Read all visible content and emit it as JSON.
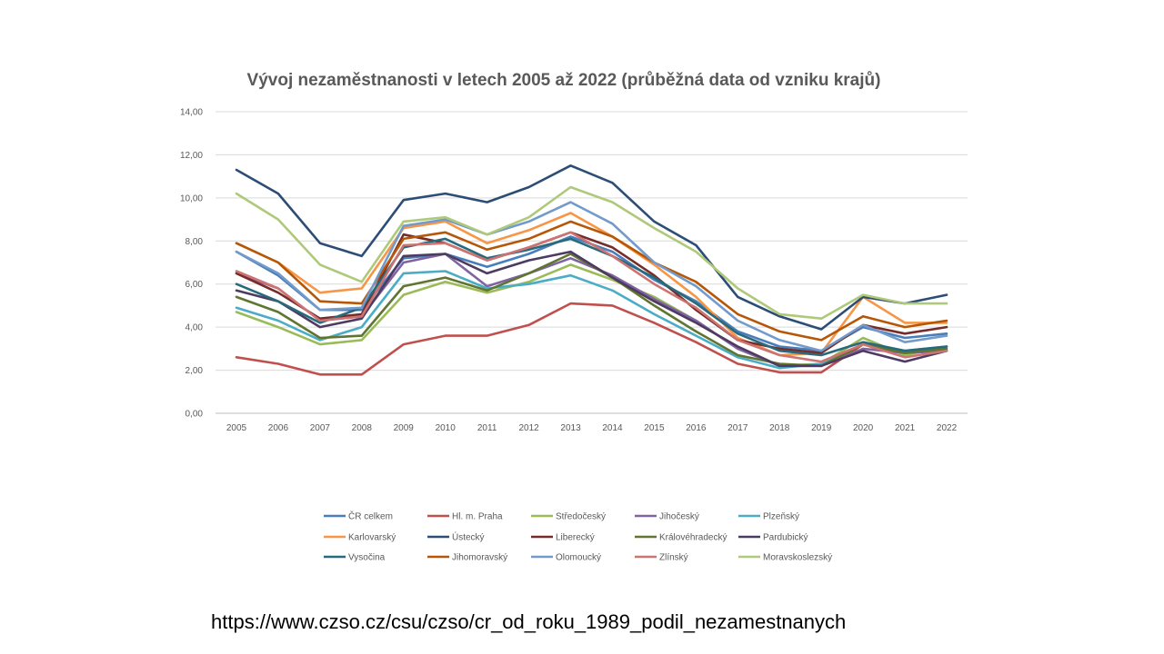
{
  "source_url": "https://www.czso.cz/csu/czso/cr_od_roku_1989_podil_nezamestnanych",
  "chart_data": {
    "type": "line",
    "title": "Vývoj nezaměstnanosti v letech 2005 až 2022 (průběžná data  od vzniku krajů)",
    "xlabel": "",
    "ylabel": "",
    "ylim": [
      0,
      14
    ],
    "yticks": [
      "0,00",
      "2,00",
      "4,00",
      "6,00",
      "8,00",
      "10,00",
      "12,00",
      "14,00"
    ],
    "ytick_values": [
      0,
      2,
      4,
      6,
      8,
      10,
      12,
      14
    ],
    "grid": "horizontal",
    "legend_position": "bottom",
    "x": [
      "2005",
      "2006",
      "2007",
      "2008",
      "2009",
      "2010",
      "2011",
      "2012",
      "2013",
      "2014",
      "2015",
      "2016",
      "2017",
      "2018",
      "2019",
      "2020",
      "2021",
      "2022"
    ],
    "series": [
      {
        "name": "ČR celkem",
        "color": "#4a7ebb",
        "values": [
          7.5,
          6.4,
          4.8,
          4.8,
          7.2,
          7.4,
          6.8,
          7.4,
          8.2,
          7.5,
          6.2,
          5.2,
          3.8,
          3.1,
          2.9,
          4.0,
          3.5,
          3.7
        ]
      },
      {
        "name": "Hl. m. Praha",
        "color": "#c0504d",
        "values": [
          2.6,
          2.3,
          1.8,
          1.8,
          3.2,
          3.6,
          3.6,
          4.1,
          5.1,
          5.0,
          4.2,
          3.3,
          2.3,
          1.9,
          1.9,
          3.2,
          2.8,
          2.9
        ]
      },
      {
        "name": "Středočeský",
        "color": "#9bbb59",
        "values": [
          4.7,
          4.0,
          3.2,
          3.4,
          5.5,
          6.1,
          5.6,
          6.1,
          6.9,
          6.2,
          5.4,
          4.3,
          3.0,
          2.2,
          2.3,
          3.5,
          2.7,
          3.1
        ]
      },
      {
        "name": "Jihočeský",
        "color": "#8064a2",
        "values": [
          6.5,
          5.8,
          4.3,
          4.5,
          7.0,
          7.4,
          5.9,
          6.5,
          7.2,
          6.4,
          5.3,
          4.3,
          3.0,
          2.2,
          2.2,
          3.0,
          2.8,
          2.9
        ]
      },
      {
        "name": "Plzeňský",
        "color": "#4bacc6",
        "values": [
          4.9,
          4.3,
          3.4,
          4.0,
          6.5,
          6.6,
          5.8,
          6.0,
          6.4,
          5.7,
          4.6,
          3.6,
          2.6,
          2.1,
          2.3,
          3.2,
          2.9,
          3.1
        ]
      },
      {
        "name": "Karlovarský",
        "color": "#f79646",
        "values": [
          7.9,
          7.0,
          5.6,
          5.8,
          8.6,
          8.9,
          7.9,
          8.5,
          9.3,
          8.2,
          6.9,
          5.4,
          3.5,
          2.7,
          2.8,
          5.4,
          4.2,
          4.2
        ]
      },
      {
        "name": "Ústecký",
        "color": "#2c4d75",
        "values": [
          11.3,
          10.2,
          7.9,
          7.3,
          9.9,
          10.2,
          9.8,
          10.5,
          11.5,
          10.7,
          8.9,
          7.8,
          5.4,
          4.5,
          3.9,
          5.4,
          5.1,
          5.5
        ]
      },
      {
        "name": "Liberecký",
        "color": "#772c2a",
        "values": [
          6.5,
          5.6,
          4.4,
          4.6,
          8.3,
          7.9,
          7.1,
          7.7,
          8.4,
          7.7,
          6.4,
          4.8,
          3.4,
          3.0,
          2.8,
          4.1,
          3.7,
          4.0
        ]
      },
      {
        "name": "Královéhradecký",
        "color": "#5f7530",
        "values": [
          5.4,
          4.7,
          3.5,
          3.6,
          5.9,
          6.3,
          5.7,
          6.5,
          7.4,
          6.3,
          5.0,
          3.8,
          2.7,
          2.3,
          2.2,
          3.2,
          2.8,
          3.0
        ]
      },
      {
        "name": "Pardubický",
        "color": "#4d3b62",
        "values": [
          5.7,
          5.2,
          4.0,
          4.4,
          7.3,
          7.4,
          6.5,
          7.1,
          7.5,
          6.3,
          5.2,
          4.2,
          3.1,
          2.2,
          2.2,
          2.9,
          2.4,
          2.9
        ]
      },
      {
        "name": "Vysočina",
        "color": "#276a7c",
        "values": [
          6.0,
          5.2,
          4.2,
          4.9,
          7.7,
          8.1,
          7.2,
          7.6,
          8.1,
          7.3,
          6.3,
          5.1,
          3.7,
          2.9,
          2.7,
          3.3,
          2.9,
          3.1
        ]
      },
      {
        "name": "Jihomoravský",
        "color": "#b65708",
        "values": [
          7.9,
          7.0,
          5.2,
          5.1,
          8.1,
          8.4,
          7.6,
          8.1,
          8.9,
          8.2,
          7.0,
          6.1,
          4.6,
          3.8,
          3.4,
          4.5,
          4.0,
          4.3
        ]
      },
      {
        "name": "Olomoucký",
        "color": "#729aca",
        "values": [
          7.5,
          6.5,
          4.8,
          4.9,
          8.7,
          9.0,
          8.3,
          8.9,
          9.8,
          8.8,
          7.0,
          5.9,
          4.3,
          3.4,
          2.9,
          4.1,
          3.3,
          3.6
        ]
      },
      {
        "name": "Zlínský",
        "color": "#cd7371",
        "values": [
          6.6,
          5.8,
          4.3,
          4.5,
          7.8,
          7.9,
          7.1,
          7.7,
          8.4,
          7.3,
          6.0,
          4.9,
          3.4,
          2.7,
          2.4,
          3.2,
          2.6,
          2.9
        ]
      },
      {
        "name": "Moravskoslezský",
        "color": "#afc97a",
        "values": [
          10.2,
          9.0,
          6.9,
          6.1,
          8.9,
          9.1,
          8.3,
          9.1,
          10.5,
          9.8,
          8.6,
          7.5,
          5.8,
          4.6,
          4.4,
          5.5,
          5.1,
          5.1
        ]
      }
    ]
  }
}
